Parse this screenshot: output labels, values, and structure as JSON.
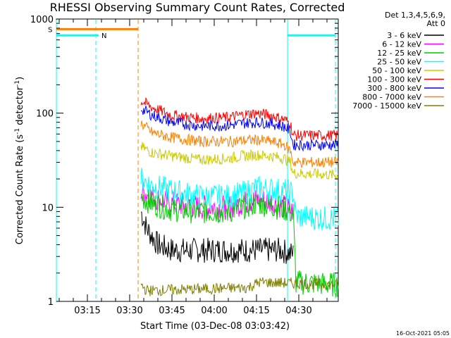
{
  "chart_data": {
    "type": "line",
    "title": "RHESSI Observing Summary Count Rates, Corrected",
    "xlabel": "Start Time (03-Dec-08 03:03:42)",
    "ylabel_prefix": "Corrected Count Rate (s",
    "ylabel_sup": "-1",
    "ylabel_mid": " detector",
    "ylabel_suffix": ")",
    "y_scale": "log",
    "ylim": [
      1,
      1000
    ],
    "xlim": [
      "03:04",
      "04:44"
    ],
    "x_ticks": [
      "03:15",
      "03:30",
      "03:45",
      "04:00",
      "04:15",
      "04:30"
    ],
    "y_ticks": [
      "1",
      "10",
      "100",
      "1000"
    ],
    "legend_header": [
      "Det 1,3,4,5,6,9,",
      "Att 0"
    ],
    "legend_position": "top-right",
    "timestamp": "16-Oct-2021 05:05",
    "colors": {
      "3-6": "#000000",
      "6-12": "#ff00ff",
      "12-25": "#00cc00",
      "25-50": "#00ffff",
      "50-100": "#cccc00",
      "100-300": "#ff0000",
      "300-800": "#0000ff",
      "800-7000": "#ff8000",
      "7000-15000": "#808000",
      "status": "#00ffff",
      "saa": "#ff8000"
    },
    "series": [
      {
        "name": "3 - 6 keV",
        "color": "#000000",
        "x": [
          "03:34",
          "03:36",
          "03:40",
          "03:45",
          "03:55",
          "04:05",
          "04:15",
          "04:24",
          "04:27",
          "04:28"
        ],
        "y": [
          9,
          6,
          4,
          3.5,
          3.5,
          3.5,
          3.5,
          3.5,
          3.2,
          3.2
        ]
      },
      {
        "name": "6 - 12 keV",
        "color": "#ff00ff",
        "x": [
          "03:34",
          "03:38",
          "03:45",
          "03:55",
          "04:05",
          "04:10",
          "04:15",
          "04:20",
          "04:25",
          "04:28"
        ],
        "y": [
          15,
          13,
          11,
          10,
          10,
          11,
          12,
          11.5,
          10,
          9
        ]
      },
      {
        "name": "12 - 25 keV",
        "color": "#00cc00",
        "x": [
          "03:34",
          "03:38",
          "03:45",
          "03:55",
          "04:05",
          "04:10",
          "04:15",
          "04:20",
          "04:25",
          "04:28",
          "04:29",
          "04:44"
        ],
        "y": [
          13,
          11,
          9.5,
          9,
          9,
          10,
          11,
          10.5,
          9.5,
          8.5,
          1.6,
          1.5
        ]
      },
      {
        "name": "25 - 50 keV",
        "color": "#00ffff",
        "x": [
          "03:34",
          "03:38",
          "03:45",
          "03:55",
          "04:05",
          "04:10",
          "04:15",
          "04:20",
          "04:25",
          "04:28",
          "04:29",
          "04:44"
        ],
        "y": [
          20,
          17,
          15,
          13,
          13,
          14,
          16,
          15.5,
          15,
          14,
          8,
          7.5
        ]
      },
      {
        "name": "50 - 100 keV",
        "color": "#cccc00",
        "x": [
          "03:34",
          "03:38",
          "03:45",
          "03:55",
          "04:05",
          "04:10",
          "04:15",
          "04:20",
          "04:25",
          "04:27",
          "04:28",
          "04:44"
        ],
        "y": [
          44,
          38,
          35,
          32,
          33,
          35,
          36,
          35,
          33,
          30,
          23,
          22
        ]
      },
      {
        "name": "100 - 300 keV",
        "color": "#ff0000",
        "x": [
          "03:34",
          "03:38",
          "03:45",
          "03:55",
          "04:05",
          "04:10",
          "04:15",
          "04:20",
          "04:25",
          "04:27",
          "04:28",
          "04:44"
        ],
        "y": [
          135,
          115,
          95,
          88,
          90,
          96,
          100,
          95,
          85,
          78,
          58,
          58
        ]
      },
      {
        "name": "300 - 800 keV",
        "color": "#0000ff",
        "x": [
          "03:34",
          "03:38",
          "03:45",
          "03:55",
          "04:05",
          "04:10",
          "04:15",
          "04:20",
          "04:25",
          "04:27",
          "04:28",
          "04:44"
        ],
        "y": [
          112,
          95,
          80,
          73,
          74,
          78,
          80,
          78,
          72,
          64,
          46,
          46
        ]
      },
      {
        "name": "800 - 7000 keV",
        "color": "#ff8000",
        "x": [
          "03:34",
          "03:38",
          "03:45",
          "03:55",
          "04:05",
          "04:10",
          "04:15",
          "04:20",
          "04:25",
          "04:27",
          "04:28",
          "04:44"
        ],
        "y": [
          78,
          62,
          55,
          50,
          50,
          51,
          52,
          50,
          46,
          40,
          30,
          30
        ]
      },
      {
        "name": "7000 - 15000 keV",
        "color": "#808000",
        "x": [
          "03:34",
          "03:36",
          "04:12",
          "04:16",
          "04:44"
        ],
        "y": [
          1.5,
          1.3,
          1.4,
          1.6,
          1.5
        ]
      }
    ],
    "annotations": [
      {
        "text": "S",
        "color": "#ff8000",
        "x_start": "03:04",
        "x_end": "03:33",
        "level": 780
      },
      {
        "text": "N",
        "color": "#00ffff",
        "x_start": "03:04",
        "x_end": "03:19",
        "level": 670
      },
      {
        "text": "",
        "color": "#00ffff",
        "x_start": "04:26",
        "x_end": "04:43",
        "level": 670
      }
    ],
    "vertical_markers": [
      {
        "x": "03:04",
        "color": "#00ffff",
        "style": "solid"
      },
      {
        "x": "03:18",
        "color": "#00ffff",
        "style": "dashed"
      },
      {
        "x": "03:33",
        "color": "#ff8000",
        "style": "dashed"
      },
      {
        "x": "04:26",
        "color": "#00ffff",
        "style": "solid"
      },
      {
        "x": "04:43",
        "color": "#00ffff",
        "style": "dashed"
      }
    ]
  }
}
